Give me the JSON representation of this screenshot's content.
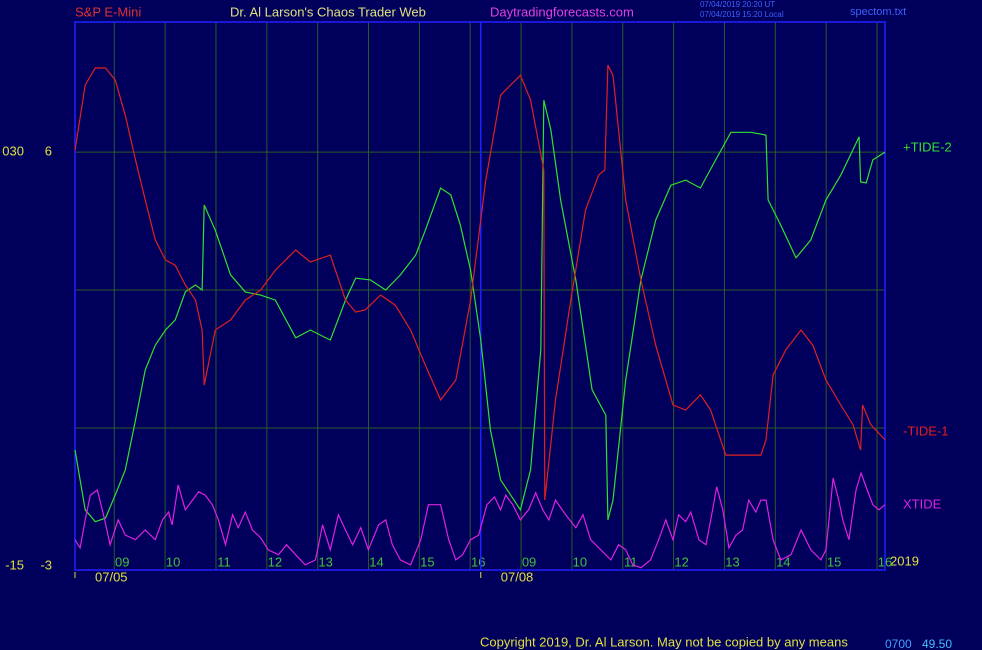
{
  "header": {
    "symbol": "S&P E-Mini",
    "site": "Dr. Al Larson's Chaos Trader Web",
    "url": "Daytradingforecasts.com",
    "time_ut": "07/04/2019 20:20 UT",
    "time_local": "07/04/2019 15:20 Local",
    "file": "spectom.txt"
  },
  "footer": {
    "copyright": "Copyright 2019, Dr. Al Larson. May not be copied by any means",
    "code": "0700",
    "price": "49.50"
  },
  "chart_data": {
    "type": "line",
    "xlim": [
      8.07,
      24
    ],
    "xticks": [
      {
        "value": 9,
        "label": "09"
      },
      10,
      11,
      12,
      13,
      14,
      15,
      16,
      {
        "value": 17,
        "label": "09"
      },
      {
        "value": 18,
        "label": "10"
      },
      {
        "value": 19,
        "label": "11"
      },
      {
        "value": 20,
        "label": "12"
      },
      {
        "value": 21,
        "label": "13"
      },
      {
        "value": 22,
        "label": "14"
      },
      {
        "value": 23,
        "label": "15"
      },
      {
        "value": 24,
        "label": "16"
      }
    ],
    "date_labels": [
      {
        "x": 8.07,
        "label": "07/05"
      },
      {
        "x": 16.05,
        "label": "07/08"
      }
    ],
    "year": "2019",
    "ylim": [
      -3.09,
      8.83
    ],
    "yticks": [
      6,
      -3
    ],
    "ygrid": [
      6,
      3,
      0
    ],
    "y2lim": [
      -15.43,
      44.13
    ],
    "y2ticks": [
      {
        "value": 30,
        "label": "030"
      },
      -15
    ],
    "grid": true,
    "series": [
      {
        "name": "+TIDE-2",
        "color": "#30e030",
        "x": [
          8.07,
          8.27,
          8.47,
          8.67,
          8.86,
          9.06,
          9.26,
          9.45,
          9.65,
          9.85,
          10.04,
          10.24,
          10.44,
          10.57,
          10.61,
          10.83,
          11.13,
          11.42,
          11.72,
          12.01,
          12.41,
          12.7,
          13.09,
          13.39,
          13.59,
          13.88,
          14.18,
          14.47,
          14.77,
          14.96,
          15.26,
          15.46,
          15.65,
          15.85,
          16.05,
          16.24,
          16.44,
          16.83,
          17.03,
          17.23,
          17.29,
          17.43,
          17.62,
          17.92,
          18.24,
          18.51,
          18.55,
          18.65,
          18.9,
          19.2,
          19.49,
          19.79,
          20.08,
          20.37,
          20.67,
          20.97,
          21.36,
          21.66,
          21.7,
          21.95,
          22.25,
          22.54,
          22.84,
          23.13,
          23.49,
          23.52,
          23.63,
          23.76,
          24
        ],
        "values": [
          -0.48,
          -1.78,
          -2.04,
          -1.96,
          -1.46,
          -0.91,
          0.17,
          1.26,
          1.8,
          2.13,
          2.35,
          2.96,
          3.11,
          3.0,
          4.85,
          4.3,
          3.33,
          2.96,
          2.89,
          2.78,
          1.96,
          2.13,
          1.91,
          2.78,
          3.26,
          3.22,
          3.0,
          3.33,
          3.76,
          4.3,
          5.22,
          5.07,
          4.41,
          3.43,
          1.91,
          -0.04,
          -1.13,
          -1.78,
          -0.91,
          1.7,
          7.13,
          6.48,
          4.96,
          3.22,
          0.83,
          0.28,
          -2.0,
          -1.57,
          1.04,
          3.22,
          4.52,
          5.28,
          5.39,
          5.22,
          5.83,
          6.43,
          6.43,
          6.37,
          4.96,
          4.41,
          3.7,
          4.09,
          4.96,
          5.5,
          6.33,
          5.35,
          5.33,
          5.83,
          6.0
        ]
      },
      {
        "name": "-TIDE-1",
        "color": "#e02020",
        "x": [
          8.07,
          8.27,
          8.47,
          8.67,
          8.86,
          9.06,
          9.26,
          9.45,
          9.65,
          9.85,
          10.04,
          10.24,
          10.44,
          10.57,
          10.61,
          10.83,
          11.13,
          11.42,
          11.72,
          12.01,
          12.41,
          12.7,
          13.09,
          13.39,
          13.59,
          13.78,
          14.08,
          14.37,
          14.67,
          14.96,
          15.26,
          15.56,
          15.85,
          16.15,
          16.44,
          16.83,
          17.03,
          17.29,
          17.31,
          17.52,
          17.82,
          18.11,
          18.37,
          18.49,
          18.55,
          18.65,
          18.9,
          19.2,
          19.49,
          19.83,
          20.08,
          20.37,
          20.57,
          20.87,
          21.17,
          21.56,
          21.66,
          21.8,
          22.05,
          22.35,
          22.58,
          22.84,
          23.13,
          23.37,
          23.52,
          23.56,
          23.72,
          24
        ],
        "values": [
          6.04,
          7.46,
          7.83,
          7.83,
          7.57,
          6.8,
          5.83,
          4.96,
          4.09,
          3.65,
          3.54,
          3.11,
          2.78,
          2.13,
          0.93,
          2.13,
          2.35,
          2.78,
          3.0,
          3.43,
          3.87,
          3.61,
          3.76,
          2.78,
          2.52,
          2.57,
          2.89,
          2.67,
          2.13,
          1.37,
          0.61,
          1.04,
          2.78,
          5.39,
          7.24,
          7.67,
          7.13,
          5.61,
          -1.57,
          0.61,
          2.78,
          4.74,
          5.5,
          5.61,
          7.89,
          7.67,
          4.96,
          3.22,
          1.8,
          0.5,
          0.39,
          0.72,
          0.39,
          -0.59,
          -0.59,
          -0.59,
          -0.26,
          1.15,
          1.7,
          2.13,
          1.8,
          1.04,
          0.5,
          0.07,
          -0.48,
          0.5,
          0.07,
          -0.26
        ]
      },
      {
        "name": "XTIDE",
        "color": "#e020e0",
        "x": [
          8.07,
          8.17,
          8.27,
          8.37,
          8.51,
          8.63,
          8.76,
          8.92,
          9.06,
          9.26,
          9.45,
          9.65,
          9.79,
          9.91,
          9.98,
          10.1,
          10.24,
          10.38,
          10.5,
          10.63,
          10.77,
          10.89,
          11.03,
          11.17,
          11.28,
          11.42,
          11.56,
          11.72,
          11.87,
          12.07,
          12.23,
          12.41,
          12.6,
          12.8,
          12.94,
          13.09,
          13.25,
          13.39,
          13.53,
          13.69,
          13.84,
          14.04,
          14.18,
          14.31,
          14.47,
          14.67,
          14.87,
          15.02,
          15.26,
          15.42,
          15.56,
          15.69,
          15.85,
          16.01,
          16.17,
          16.32,
          16.44,
          16.54,
          16.68,
          16.83,
          16.99,
          17.13,
          17.27,
          17.39,
          17.52,
          17.72,
          17.92,
          18.06,
          18.21,
          18.41,
          18.61,
          18.76,
          18.9,
          19.04,
          19.2,
          19.39,
          19.55,
          19.69,
          19.83,
          19.94,
          20.08,
          20.18,
          20.34,
          20.48,
          20.61,
          20.69,
          20.81,
          20.93,
          21.07,
          21.2,
          21.32,
          21.46,
          21.56,
          21.66,
          21.8,
          21.95,
          22.15,
          22.35,
          22.54,
          22.74,
          22.84,
          22.98,
          23.09,
          23.17,
          23.29,
          23.43,
          23.53,
          23.65,
          23.76,
          23.88,
          24
        ],
        "values": [
          -2.43,
          -2.61,
          -2.0,
          -1.46,
          -1.35,
          -1.89,
          -2.54,
          -2.0,
          -2.33,
          -2.43,
          -2.22,
          -2.43,
          -2.0,
          -1.83,
          -2.11,
          -1.24,
          -1.78,
          -1.57,
          -1.39,
          -1.46,
          -1.67,
          -2.0,
          -2.54,
          -1.89,
          -2.17,
          -1.83,
          -2.22,
          -2.39,
          -2.65,
          -2.76,
          -2.54,
          -2.76,
          -2.98,
          -2.87,
          -2.11,
          -2.65,
          -1.89,
          -2.22,
          -2.54,
          -2.17,
          -2.65,
          -2.11,
          -2.0,
          -2.54,
          -2.87,
          -2.98,
          -2.43,
          -1.67,
          -1.67,
          -2.43,
          -2.87,
          -2.76,
          -2.43,
          -2.33,
          -1.67,
          -1.5,
          -1.78,
          -1.46,
          -1.67,
          -2.0,
          -1.78,
          -1.41,
          -1.78,
          -2.0,
          -1.57,
          -1.89,
          -2.17,
          -1.89,
          -2.43,
          -2.65,
          -2.87,
          -2.54,
          -2.65,
          -2.98,
          -3.04,
          -2.87,
          -2.43,
          -2.0,
          -2.43,
          -1.89,
          -2.04,
          -1.83,
          -2.43,
          -2.54,
          -1.78,
          -1.28,
          -1.78,
          -2.61,
          -2.33,
          -2.22,
          -1.57,
          -1.83,
          -1.57,
          -1.57,
          -2.43,
          -2.87,
          -2.76,
          -2.22,
          -2.65,
          -2.87,
          -2.65,
          -1.09,
          -1.57,
          -2.0,
          -2.43,
          -1.35,
          -0.98,
          -1.35,
          -1.67,
          -1.78,
          -1.67
        ]
      }
    ]
  }
}
